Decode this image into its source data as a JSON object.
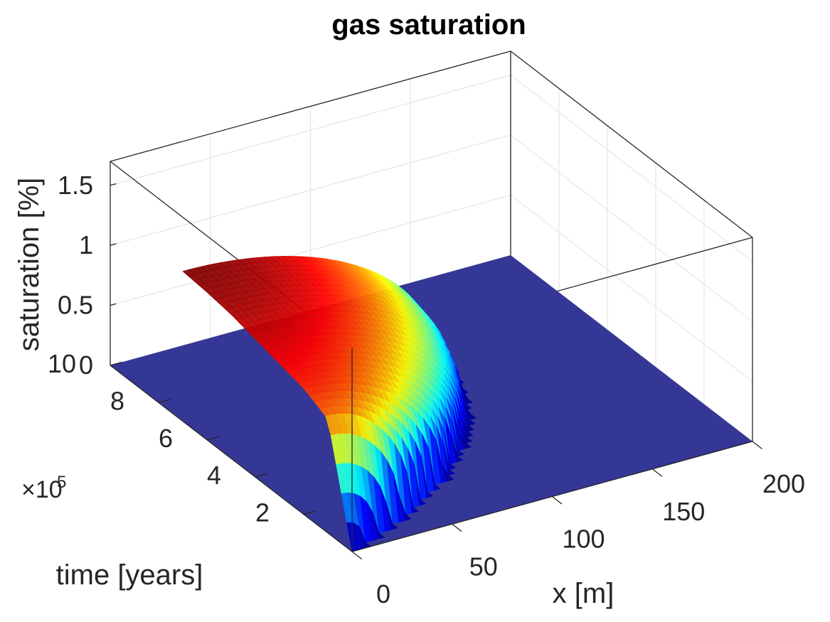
{
  "chart_data": {
    "type": "surface",
    "title": "gas saturation",
    "xlabel": "x [m]",
    "ylabel": "time [years]",
    "zlabel": "saturation [%]",
    "xlim": [
      0,
      200
    ],
    "ylim": [
      0,
      1000000
    ],
    "zlim": [
      0,
      1.7
    ],
    "x_ticks": [
      "0",
      "50",
      "100",
      "150",
      "200"
    ],
    "y_ticks": [
      "2",
      "4",
      "6",
      "8",
      "10"
    ],
    "z_ticks": [
      "0",
      "0.5",
      "1",
      "1.5"
    ],
    "y_exponent": "×10",
    "y_exponent_power": "5",
    "grid": true,
    "colormap": "jet",
    "plane_color": "#353796",
    "surface": {
      "x_extent_m": [
        0,
        125
      ],
      "time_start": 0,
      "time_end": 700000,
      "peak_saturation": 1.25,
      "outer_x_at_end_m": 130,
      "profile": [
        {
          "time": 0,
          "x_front_m": 0,
          "max_saturation": 0.0
        },
        {
          "time": 100000,
          "x_front_m": 40,
          "max_saturation": 0.95
        },
        {
          "time": 200000,
          "x_front_m": 70,
          "max_saturation": 1.05
        },
        {
          "time": 300000,
          "x_front_m": 90,
          "max_saturation": 1.1
        },
        {
          "time": 400000,
          "x_front_m": 105,
          "max_saturation": 1.15
        },
        {
          "time": 500000,
          "x_front_m": 115,
          "max_saturation": 1.2
        },
        {
          "time": 600000,
          "x_front_m": 122,
          "max_saturation": 1.23
        },
        {
          "time": 700000,
          "x_front_m": 125,
          "max_saturation": 1.25
        }
      ]
    }
  }
}
